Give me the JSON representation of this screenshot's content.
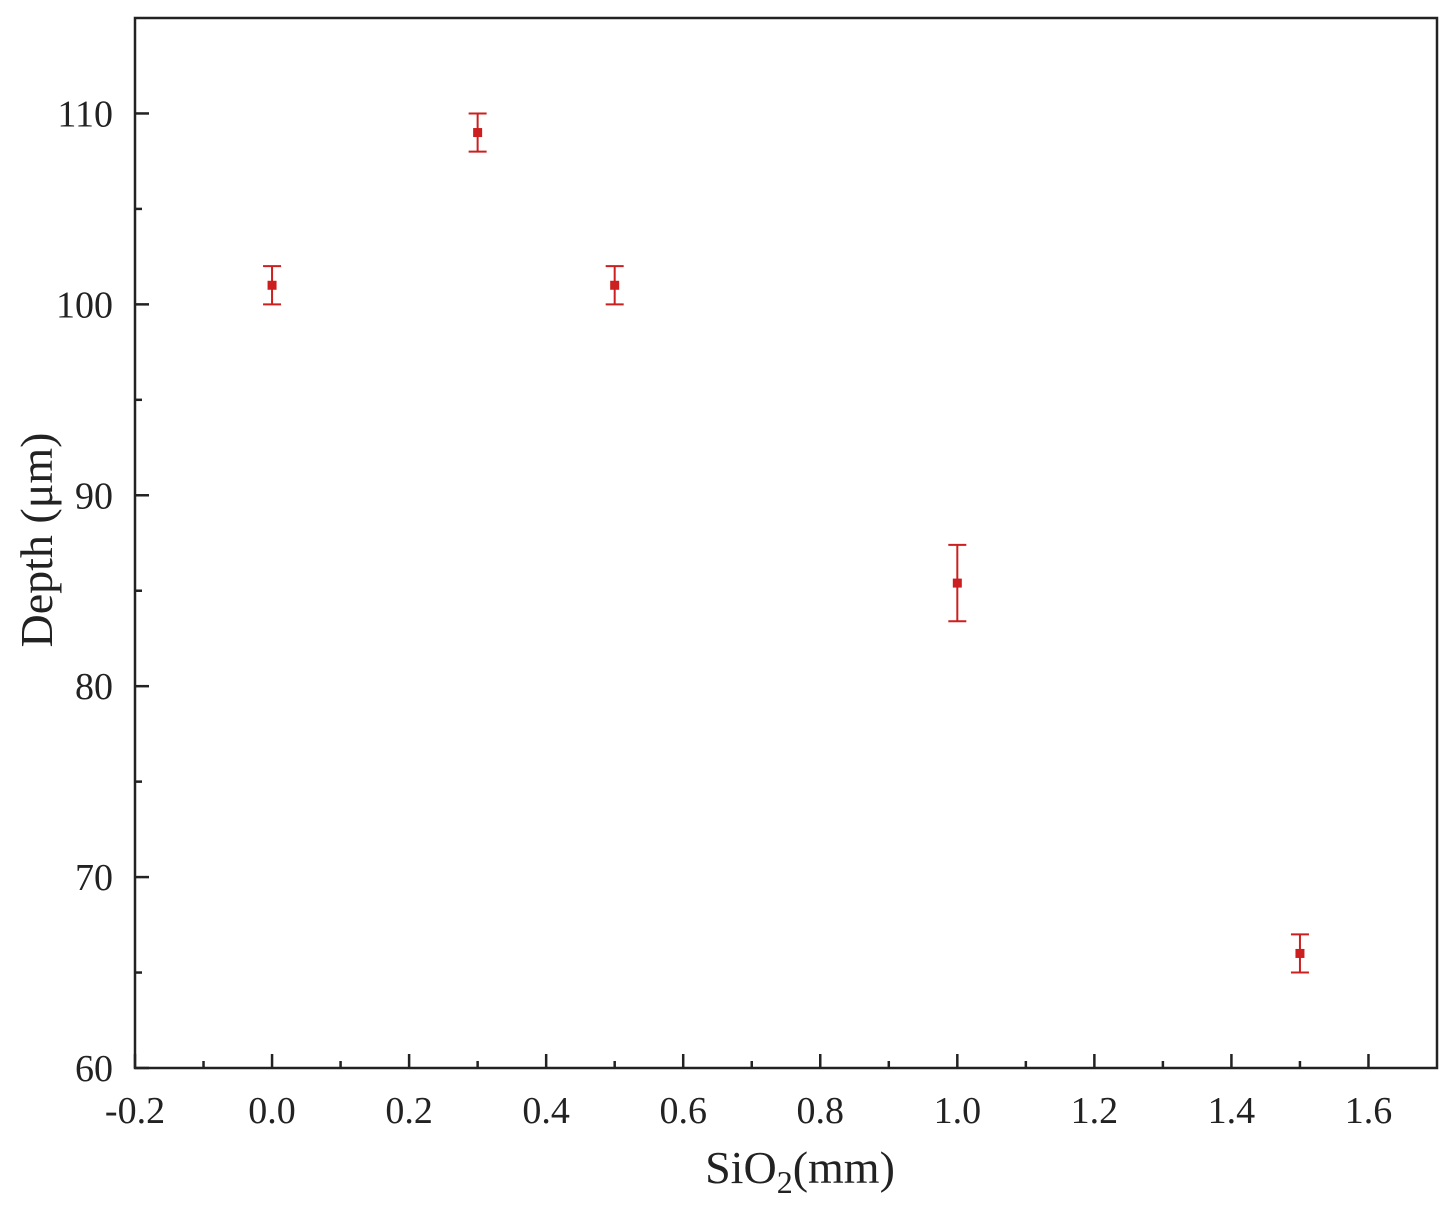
{
  "chart_data": {
    "type": "scatter",
    "title": "",
    "xlabel": {
      "base": "SiO",
      "subscript": "2",
      "suffix": "(mm)"
    },
    "ylabel": "Depth (μm)",
    "xlim": [
      -0.2,
      1.7
    ],
    "ylim": [
      60,
      115
    ],
    "x_ticks": [
      -0.2,
      0.0,
      0.2,
      0.4,
      0.6,
      0.8,
      1.0,
      1.2,
      1.4,
      1.6
    ],
    "x_tick_labels": [
      "-0.2",
      "0.0",
      "0.2",
      "0.4",
      "0.6",
      "0.8",
      "1.0",
      "1.2",
      "1.4",
      "1.6"
    ],
    "y_ticks": [
      60,
      70,
      80,
      90,
      100,
      110
    ],
    "y_tick_labels": [
      "60",
      "70",
      "80",
      "90",
      "100",
      "110"
    ],
    "grid": false,
    "legend": "none",
    "series": [
      {
        "color": "#cc1f1f",
        "points": [
          {
            "x": 0.0,
            "y": 101.0,
            "err": 1.0
          },
          {
            "x": 0.3,
            "y": 109.0,
            "err": 1.0
          },
          {
            "x": 0.5,
            "y": 101.0,
            "err": 1.0
          },
          {
            "x": 1.0,
            "y": 85.4,
            "err": 2.0
          },
          {
            "x": 1.5,
            "y": 66.0,
            "err": 1.0
          }
        ]
      }
    ]
  }
}
